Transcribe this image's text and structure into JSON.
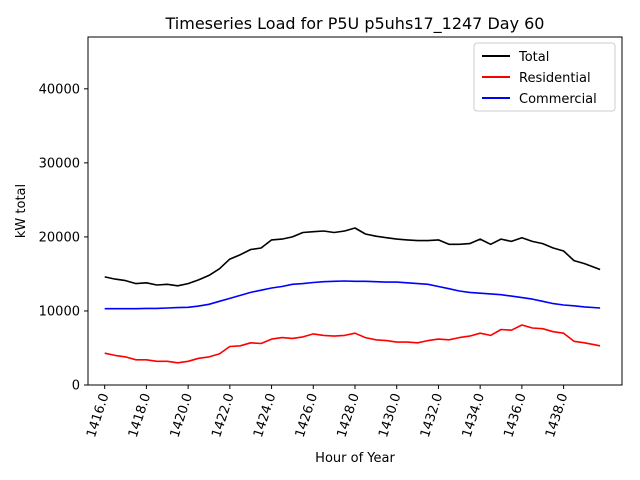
{
  "chart_data": {
    "type": "line",
    "title": "Timeseries Load for P5U p5uhs17_1247  Day 60",
    "xlabel": "Hour of Year",
    "ylabel": "kW total",
    "xlim": [
      1415.2,
      1440.8
    ],
    "ylim": [
      0,
      47000
    ],
    "xticks": [
      1416,
      1418,
      1420,
      1422,
      1424,
      1426,
      1428,
      1430,
      1432,
      1434,
      1436,
      1438
    ],
    "xtick_labels": [
      "1416.0",
      "1418.0",
      "1420.0",
      "1422.0",
      "1424.0",
      "1426.0",
      "1428.0",
      "1430.0",
      "1432.0",
      "1434.0",
      "1436.0",
      "1438.0"
    ],
    "yticks": [
      0,
      10000,
      20000,
      30000,
      40000
    ],
    "ytick_labels": [
      "0",
      "10000",
      "20000",
      "30000",
      "40000"
    ],
    "legend_position": "top-right",
    "series": [
      {
        "name": "Total",
        "color": "#000000",
        "x": [
          1416.0,
          1416.5,
          1417.0,
          1417.5,
          1418.0,
          1418.5,
          1419.0,
          1419.5,
          1420.0,
          1420.5,
          1421.0,
          1421.5,
          1422.0,
          1422.5,
          1423.0,
          1423.5,
          1424.0,
          1424.5,
          1425.0,
          1425.5,
          1426.0,
          1426.5,
          1427.0,
          1427.5,
          1428.0,
          1428.5,
          1429.0,
          1429.5,
          1430.0,
          1430.5,
          1431.0,
          1431.5,
          1432.0,
          1432.5,
          1433.0,
          1433.5,
          1434.0,
          1434.5,
          1435.0,
          1435.5,
          1436.0,
          1436.5,
          1437.0,
          1437.5,
          1438.0,
          1438.5,
          1439.0,
          1439.75
        ],
        "values": [
          14600,
          14300,
          14100,
          13700,
          13800,
          13500,
          13600,
          13400,
          13700,
          14200,
          14800,
          15700,
          17000,
          17600,
          18300,
          18500,
          19600,
          19700,
          20000,
          20600,
          20700,
          20800,
          20600,
          20800,
          21200,
          20400,
          20100,
          19900,
          19700,
          19600,
          19500,
          19500,
          19600,
          19000,
          19000,
          19100,
          19700,
          19000,
          19700,
          19400,
          19900,
          19400,
          19100,
          18500,
          18100,
          16800,
          16400,
          15600
        ]
      },
      {
        "name": "Residential",
        "color": "#ff0000",
        "x": [
          1416.0,
          1416.5,
          1417.0,
          1417.5,
          1418.0,
          1418.5,
          1419.0,
          1419.5,
          1420.0,
          1420.5,
          1421.0,
          1421.5,
          1422.0,
          1422.5,
          1423.0,
          1423.5,
          1424.0,
          1424.5,
          1425.0,
          1425.5,
          1426.0,
          1426.5,
          1427.0,
          1427.5,
          1428.0,
          1428.5,
          1429.0,
          1429.5,
          1430.0,
          1430.5,
          1431.0,
          1431.5,
          1432.0,
          1432.5,
          1433.0,
          1433.5,
          1434.0,
          1434.5,
          1435.0,
          1435.5,
          1436.0,
          1436.5,
          1437.0,
          1437.5,
          1438.0,
          1438.5,
          1439.0,
          1439.75
        ],
        "values": [
          4300,
          4000,
          3800,
          3400,
          3400,
          3200,
          3200,
          3000,
          3200,
          3600,
          3800,
          4200,
          5200,
          5300,
          5700,
          5600,
          6200,
          6400,
          6300,
          6500,
          6900,
          6700,
          6600,
          6700,
          7000,
          6400,
          6100,
          6000,
          5800,
          5800,
          5700,
          6000,
          6200,
          6100,
          6400,
          6600,
          7000,
          6700,
          7500,
          7400,
          8100,
          7700,
          7600,
          7200,
          7000,
          5900,
          5700,
          5300
        ]
      },
      {
        "name": "Commercial",
        "color": "#0000ff",
        "x": [
          1416.0,
          1416.5,
          1417.0,
          1417.5,
          1418.0,
          1418.5,
          1419.0,
          1419.5,
          1420.0,
          1420.5,
          1421.0,
          1421.5,
          1422.0,
          1422.5,
          1423.0,
          1423.5,
          1424.0,
          1424.5,
          1425.0,
          1425.5,
          1426.0,
          1426.5,
          1427.0,
          1427.5,
          1428.0,
          1428.5,
          1429.0,
          1429.5,
          1430.0,
          1430.5,
          1431.0,
          1431.5,
          1432.0,
          1432.5,
          1433.0,
          1433.5,
          1434.0,
          1434.5,
          1435.0,
          1435.5,
          1436.0,
          1436.5,
          1437.0,
          1437.5,
          1438.0,
          1438.5,
          1439.0,
          1439.75
        ],
        "values": [
          10300,
          10300,
          10300,
          10300,
          10350,
          10350,
          10400,
          10450,
          10500,
          10650,
          10900,
          11300,
          11700,
          12100,
          12500,
          12800,
          13100,
          13300,
          13600,
          13700,
          13850,
          13950,
          14000,
          14050,
          14000,
          14000,
          13950,
          13900,
          13900,
          13800,
          13700,
          13600,
          13300,
          13000,
          12700,
          12500,
          12400,
          12300,
          12200,
          12000,
          11800,
          11600,
          11300,
          11000,
          10800,
          10700,
          10550,
          10400
        ]
      }
    ]
  }
}
